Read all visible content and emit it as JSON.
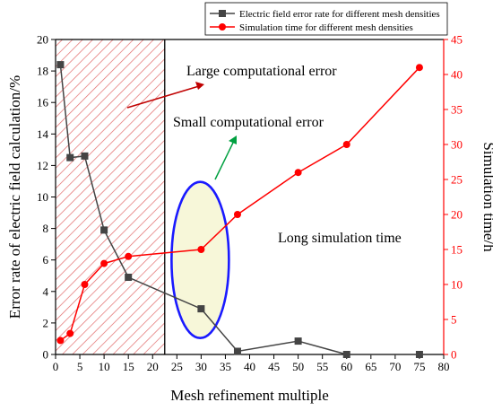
{
  "chart_data": {
    "type": "line",
    "x_axis": {
      "label": "Mesh refinement multiple",
      "range": [
        0,
        80
      ],
      "ticks": [
        0,
        5,
        10,
        15,
        20,
        25,
        30,
        35,
        40,
        45,
        50,
        55,
        60,
        65,
        70,
        75,
        80
      ]
    },
    "y_left": {
      "label": "Error rate of electric field calculation/%",
      "range": [
        0,
        20
      ],
      "ticks": [
        0,
        2,
        4,
        6,
        8,
        10,
        12,
        14,
        16,
        18,
        20
      ],
      "color": "#000000"
    },
    "y_right": {
      "label": "Simulation time/h",
      "range": [
        0,
        45
      ],
      "ticks": [
        0,
        5,
        10,
        15,
        20,
        25,
        30,
        35,
        40,
        45
      ],
      "color": "#ff0000"
    },
    "series": [
      {
        "name": "Electric field error rate for different mesh densities",
        "axis": "left",
        "marker": "square",
        "color": "#444444",
        "x": [
          1,
          3,
          6,
          10,
          15,
          30,
          37.5,
          50,
          60,
          75
        ],
        "y": [
          18.4,
          12.5,
          12.6,
          7.9,
          4.9,
          2.9,
          0.2,
          0.85,
          0.0,
          0.0
        ]
      },
      {
        "name": "Simulation time for different mesh densities",
        "axis": "right",
        "marker": "circle",
        "color": "#ff0000",
        "x": [
          1,
          3,
          6,
          10,
          15,
          30,
          37.5,
          50,
          60,
          75
        ],
        "y": [
          2,
          3,
          10,
          13,
          14,
          15,
          20,
          26,
          30,
          41
        ]
      }
    ],
    "regions": [
      {
        "name": "hatched-region",
        "x_range": [
          0,
          22.5
        ],
        "color": "#e05050"
      }
    ],
    "annotations": {
      "large_error": "Large computational error",
      "small_error": "Small computational error",
      "long_time": "Long simulation time"
    },
    "ellipse": {
      "center_x": 30,
      "center_y_left": 6,
      "fill": "#f7f7d9",
      "stroke": "#1a1aff"
    },
    "legend_position": "top-right"
  }
}
